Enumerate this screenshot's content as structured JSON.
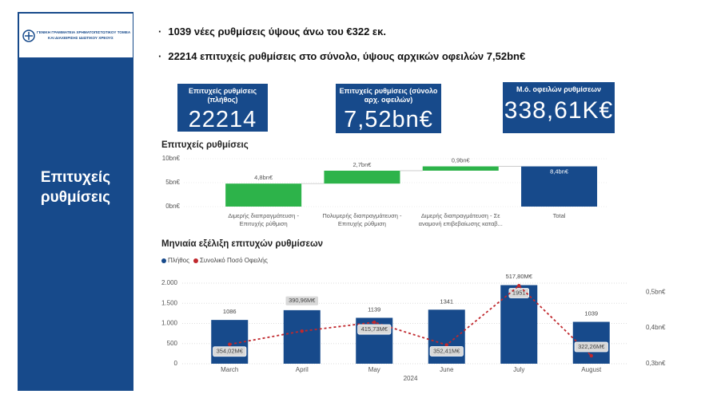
{
  "sidebar": {
    "logo_lines": [
      "ΓΕΝΙΚΗ ΓΡΑΜΜΑΤΕΙΑ ΧΡΗΜΑΤΟΠΙΣΤΩΤΙΚΟΥ ΤΟΜΕΑ",
      "ΚΑΙ ΔΙΑΧΕΙΡΙΣΗΣ ΙΔΙΩΤΙΚΟΥ ΧΡΕΟΥΣ"
    ],
    "title": "Επιτυχείς ρυθμίσεις"
  },
  "bullets": [
    "1039 νέες ρυθμίσεις ύψους άνω του €322 εκ.",
    "22214 επιτυχείς ρυθμίσεις στο σύνολο, ύψους αρχικών οφειλών  7,52bn€"
  ],
  "kpis": [
    {
      "label": "Επιτυχείς ρυθμίσεις (πλήθος)",
      "value": 22214
    },
    {
      "label": "Επιτυχείς ρυθμίσεις (σύνολο αρχ. οφειλών)",
      "value": "7,52bn€"
    },
    {
      "label": "Μ.ό. οφειλών ρυθμίσεων",
      "value": "338,61K€"
    }
  ],
  "chart_data": [
    {
      "type": "waterfall",
      "title": "Επιτυχείς ρυθμίσεις",
      "categories": [
        "Διμερής διαπραγμάτευση - Επιτυχής ρύθμιση",
        "Πολυμερής διαπραγμάτευση - Επιτυχής ρύθμιση",
        "Διμερής διαπραγμάτευση - Σε αναμονή επιβεβαίωσης καταβ...",
        "Total"
      ],
      "values": [
        4.8,
        2.7,
        0.9,
        8.4
      ],
      "value_labels": [
        "4,8bn€",
        "2,7bn€",
        "0,9bn€",
        "8,4bn€"
      ],
      "color": "#2db34a",
      "total_color": "#174a8b",
      "ylim": [
        0,
        10
      ],
      "yticks": [
        {
          "value": 0,
          "label": "0bn€"
        },
        {
          "value": 5,
          "label": "5bn€"
        },
        {
          "value": 10,
          "label": "10bn€"
        }
      ]
    },
    {
      "type": "bar_line",
      "title": "Μηνιαία εξέλιξη επιτυχών ρυθμίσεων",
      "x_label": "2024",
      "categories": [
        "March",
        "April",
        "May",
        "June",
        "July",
        "August"
      ],
      "series": [
        {
          "name": "Πλήθος",
          "type": "bar",
          "color": "#174a8b",
          "values": [
            1086,
            1329,
            1139,
            1341,
            1951,
            1039
          ]
        },
        {
          "name": "Συνολικό Ποσό Οφειλής",
          "type": "line",
          "axis": "y2",
          "color": "#c0282d",
          "values": [
            0.35402,
            0.39096,
            0.41573,
            0.35241,
            0.5178,
            0.32226
          ],
          "value_labels": [
            "354,02M€",
            "390,96M€",
            "415,73M€",
            "352,41M€",
            "517,80M€",
            "322,26M€"
          ]
        }
      ],
      "ylim": [
        0,
        2000
      ],
      "yticks": [
        0,
        500,
        {
          "value": 1000,
          "label": "1.000"
        },
        {
          "value": 1500,
          "label": "1.500"
        },
        {
          "value": 2000,
          "label": "2.000"
        }
      ],
      "y2lim": [
        0.3,
        0.525
      ],
      "y2ticks": [
        {
          "value": 0.3,
          "label": "0,3bn€"
        },
        {
          "value": 0.4,
          "label": "0,4bn€"
        },
        {
          "value": 0.5,
          "label": "0,5bn€"
        }
      ],
      "grid": true,
      "legend": "top-left"
    }
  ]
}
